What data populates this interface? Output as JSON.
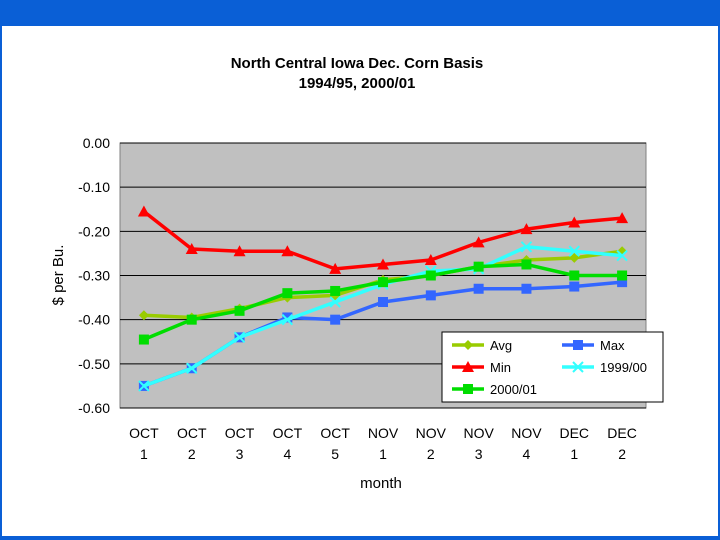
{
  "chart_data": {
    "type": "line",
    "title": "North Central Iowa Dec. Corn Basis",
    "subtitle": "1994/95, 2000/01",
    "xlabel": "month",
    "ylabel": "$ per Bu.",
    "ylim": [
      -0.6,
      0.0
    ],
    "yticks": [
      "0.00",
      "-0.10",
      "-0.20",
      "-0.30",
      "-0.40",
      "-0.50",
      "-0.60"
    ],
    "ytick_values": [
      0.0,
      -0.1,
      -0.2,
      -0.3,
      -0.4,
      -0.5,
      -0.6
    ],
    "categories": [
      {
        "top": "OCT",
        "bottom": "1"
      },
      {
        "top": "OCT",
        "bottom": "2"
      },
      {
        "top": "OCT",
        "bottom": "3"
      },
      {
        "top": "OCT",
        "bottom": "4"
      },
      {
        "top": "OCT",
        "bottom": "5"
      },
      {
        "top": "NOV",
        "bottom": "1"
      },
      {
        "top": "NOV",
        "bottom": "2"
      },
      {
        "top": "NOV",
        "bottom": "3"
      },
      {
        "top": "NOV",
        "bottom": "4"
      },
      {
        "top": "DEC",
        "bottom": "1"
      },
      {
        "top": "DEC",
        "bottom": "2"
      }
    ],
    "grid": true,
    "legend_position": "bottom-right",
    "series": [
      {
        "name": "Avg",
        "color": "#99cc00",
        "marker": "diamond",
        "values": [
          -0.39,
          -0.395,
          -0.375,
          -0.35,
          -0.345,
          -0.31,
          -0.3,
          -0.28,
          -0.265,
          -0.26,
          -0.245
        ]
      },
      {
        "name": "Max",
        "color": "#3366ff",
        "marker": "square",
        "values": [
          -0.55,
          -0.51,
          -0.44,
          -0.395,
          -0.4,
          -0.36,
          -0.345,
          -0.33,
          -0.33,
          -0.325,
          -0.315
        ]
      },
      {
        "name": "Min",
        "color": "#ff0000",
        "marker": "triangle",
        "values": [
          -0.155,
          -0.24,
          -0.245,
          -0.245,
          -0.285,
          -0.275,
          -0.265,
          -0.225,
          -0.195,
          -0.18,
          -0.17
        ]
      },
      {
        "name": "1999/00",
        "color": "#33ffff",
        "marker": "x",
        "values": [
          -0.55,
          -0.51,
          -0.44,
          -0.4,
          -0.36,
          -0.32,
          -0.29,
          -0.285,
          -0.235,
          -0.245,
          -0.255
        ]
      },
      {
        "name": "2000/01",
        "color": "#00dd00",
        "marker": "square",
        "values": [
          -0.445,
          -0.4,
          -0.38,
          -0.34,
          -0.335,
          -0.315,
          -0.3,
          -0.28,
          -0.275,
          -0.3,
          -0.3
        ]
      }
    ]
  }
}
